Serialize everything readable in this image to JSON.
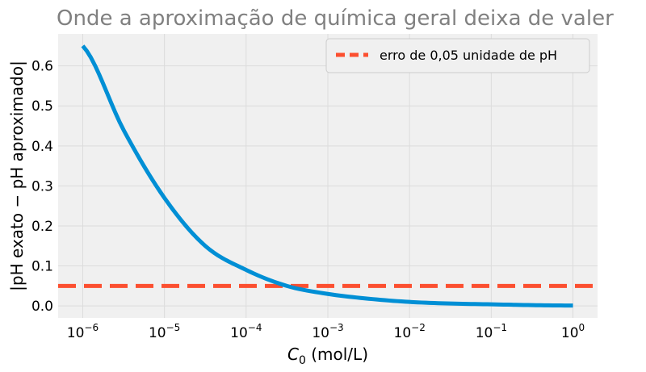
{
  "chart_data": {
    "type": "line",
    "title": "Onde a aproximação de química geral deixa de valer",
    "xlabel_main": "C",
    "xlabel_sub": "0",
    "xlabel_unit": " (mol/L)",
    "ylabel": "|pH exato − pH aproximado|",
    "x_scale": "log",
    "xlim": [
      5e-07,
      2.0
    ],
    "ylim": [
      -0.03,
      0.68
    ],
    "x_ticks": [
      {
        "base": "10",
        "exp": "−6",
        "value": 1e-06
      },
      {
        "base": "10",
        "exp": "−5",
        "value": 1e-05
      },
      {
        "base": "10",
        "exp": "−4",
        "value": 0.0001
      },
      {
        "base": "10",
        "exp": "−3",
        "value": 0.001
      },
      {
        "base": "10",
        "exp": "−2",
        "value": 0.01
      },
      {
        "base": "10",
        "exp": "−1",
        "value": 0.1
      },
      {
        "base": "10",
        "exp": "0",
        "value": 1
      }
    ],
    "y_ticks": [
      {
        "label": "0.0",
        "value": 0.0
      },
      {
        "label": "0.1",
        "value": 0.1
      },
      {
        "label": "0.2",
        "value": 0.2
      },
      {
        "label": "0.3",
        "value": 0.3
      },
      {
        "label": "0.4",
        "value": 0.4
      },
      {
        "label": "0.5",
        "value": 0.5
      },
      {
        "label": "0.6",
        "value": 0.6
      }
    ],
    "grid": true,
    "legend_position": "top-right",
    "series": [
      {
        "color": "#008fd5",
        "x": [
          1e-06,
          3.16e-06,
          1e-05,
          3.16e-05,
          0.0001,
          0.000316,
          0.001,
          0.00316,
          0.01,
          0.0316,
          0.1,
          0.316,
          1
        ],
        "y": [
          0.65,
          0.44,
          0.27,
          0.15,
          0.09,
          0.05,
          0.03,
          0.018,
          0.01,
          0.006,
          0.004,
          0.002,
          0.001
        ]
      }
    ],
    "reference_lines": [
      {
        "name": "erro de 0,05 unidade de pH",
        "y": 0.05,
        "color": "#fc4f30",
        "style": "dashed"
      }
    ],
    "colors": {
      "plot_bg": "#f0f0f0",
      "grid": "#dcdcdc",
      "title": "#808080"
    }
  }
}
